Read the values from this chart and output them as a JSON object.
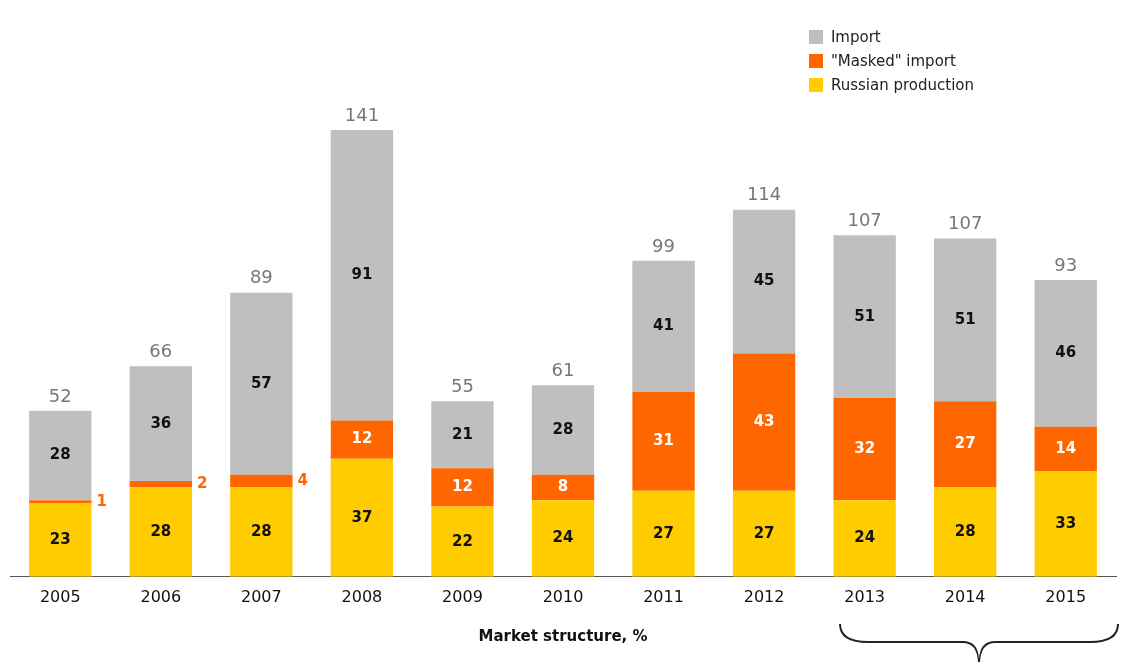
{
  "chart_data": {
    "type": "bar",
    "stacked": true,
    "xlabel": "Market structure, %",
    "legend": "top right",
    "data_labels": true,
    "categories": [
      "2005",
      "2006",
      "2007",
      "2008",
      "2009",
      "2010",
      "2011",
      "2012",
      "2013",
      "2014",
      "2015"
    ],
    "series": [
      {
        "name": "Russian production",
        "color": "#ffcc00",
        "values": [
          23,
          28,
          28,
          37,
          22,
          24,
          27,
          27,
          24,
          28,
          33
        ]
      },
      {
        "name": "\"Masked\" import",
        "color": "#ff6600",
        "values": [
          1,
          2,
          4,
          12,
          12,
          8,
          31,
          43,
          32,
          27,
          14
        ]
      },
      {
        "name": "Import",
        "color": "#bfbfbf",
        "values": [
          28,
          36,
          57,
          91,
          21,
          28,
          41,
          45,
          51,
          51,
          46
        ]
      }
    ],
    "totals": [
      "52",
      "66",
      "89",
      "141",
      "55",
      "61",
      "99",
      "114",
      "107",
      "107",
      "93"
    ]
  }
}
